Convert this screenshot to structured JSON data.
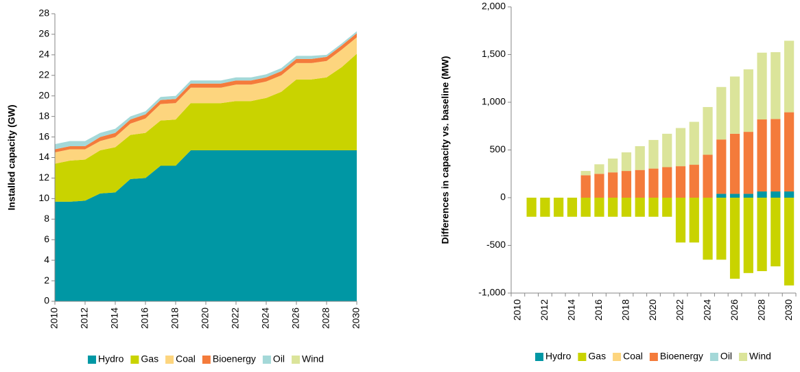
{
  "chart_data": [
    {
      "type": "area",
      "stacked": true,
      "y_label": "Installed capacity (GW)",
      "x": [
        2010,
        2011,
        2012,
        2013,
        2014,
        2015,
        2016,
        2017,
        2018,
        2019,
        2020,
        2021,
        2022,
        2023,
        2024,
        2025,
        2026,
        2027,
        2028,
        2029,
        2030
      ],
      "xlim": [
        2010,
        2030
      ],
      "xticks": [
        2010,
        2012,
        2014,
        2016,
        2018,
        2020,
        2022,
        2024,
        2026,
        2028,
        2030
      ],
      "ylim": [
        0,
        28
      ],
      "yticks": [
        0,
        2,
        4,
        6,
        8,
        10,
        12,
        14,
        16,
        18,
        20,
        22,
        24,
        26,
        28
      ],
      "grid": false,
      "series": [
        {
          "name": "Hydro",
          "color": "#0097a4",
          "values": [
            9.7,
            9.7,
            9.8,
            10.5,
            10.6,
            11.9,
            12.0,
            13.2,
            13.2,
            14.7,
            14.7,
            14.7,
            14.7,
            14.7,
            14.7,
            14.7,
            14.7,
            14.7,
            14.7,
            14.7,
            14.7
          ]
        },
        {
          "name": "Gas",
          "color": "#c9d300",
          "values": [
            3.7,
            4.0,
            4.0,
            4.2,
            4.4,
            4.3,
            4.4,
            4.4,
            4.5,
            4.6,
            4.6,
            4.6,
            4.8,
            4.8,
            5.1,
            5.7,
            6.9,
            6.9,
            7.1,
            8.1,
            9.4
          ]
        },
        {
          "name": "Coal",
          "color": "#fdd57e",
          "values": [
            1.1,
            1.1,
            1.0,
            0.9,
            1.0,
            1.1,
            1.4,
            1.6,
            1.6,
            1.5,
            1.5,
            1.5,
            1.6,
            1.6,
            1.6,
            1.6,
            1.6,
            1.6,
            1.6,
            1.7,
            1.6
          ]
        },
        {
          "name": "Bioenergy",
          "color": "#f47b3b",
          "values": [
            0.3,
            0.3,
            0.3,
            0.4,
            0.4,
            0.4,
            0.4,
            0.4,
            0.4,
            0.4,
            0.4,
            0.4,
            0.4,
            0.4,
            0.4,
            0.4,
            0.4,
            0.4,
            0.4,
            0.4,
            0.4
          ]
        },
        {
          "name": "Oil",
          "color": "#a4d8d8",
          "values": [
            0.5,
            0.5,
            0.5,
            0.4,
            0.4,
            0.3,
            0.3,
            0.3,
            0.3,
            0.3,
            0.3,
            0.3,
            0.3,
            0.3,
            0.3,
            0.3,
            0.3,
            0.3,
            0.2,
            0.2,
            0.2
          ]
        },
        {
          "name": "Wind",
          "color": "#dbe49a",
          "values": [
            0,
            0,
            0,
            0,
            0,
            0,
            0,
            0,
            0,
            0,
            0,
            0,
            0,
            0,
            0,
            0,
            0,
            0,
            0,
            0,
            0
          ]
        }
      ]
    },
    {
      "type": "bar",
      "stacked": true,
      "y_label": "Differences in capacity vs. baseline (MW)",
      "categories": [
        "2010",
        null,
        "2012",
        null,
        "2014",
        null,
        "2016",
        null,
        "2018",
        null,
        "2020",
        null,
        "2022",
        null,
        "2024",
        null,
        "2026",
        null,
        "2028",
        null,
        "2030"
      ],
      "ylim": [
        -1000,
        2000
      ],
      "yticks": [
        {
          "value": -1000,
          "label": "-1,000"
        },
        -500,
        0,
        500,
        {
          "value": 1000,
          "label": "1,000"
        },
        {
          "value": 1500,
          "label": "1,500"
        },
        {
          "value": 2000,
          "label": "2,000"
        }
      ],
      "grid": false,
      "series": [
        {
          "name": "Hydro",
          "color": "#0097a4",
          "values": [
            0,
            0,
            0,
            0,
            0,
            0,
            0,
            0,
            0,
            0,
            0,
            0,
            0,
            0,
            0,
            40,
            40,
            40,
            65,
            65,
            65
          ]
        },
        {
          "name": "Gas",
          "color": "#c9d300",
          "values": [
            0,
            -200,
            -200,
            -200,
            -200,
            -200,
            -200,
            -200,
            -200,
            -200,
            -200,
            -200,
            -470,
            -470,
            -650,
            -650,
            -850,
            -790,
            -770,
            -720,
            -920
          ]
        },
        {
          "name": "Coal",
          "color": "#fdd57e",
          "values": [
            0,
            0,
            0,
            0,
            0,
            0,
            0,
            0,
            0,
            0,
            0,
            0,
            0,
            0,
            0,
            0,
            0,
            0,
            0,
            0,
            0
          ]
        },
        {
          "name": "Bioenergy",
          "color": "#f47b3b",
          "values": [
            0,
            0,
            0,
            0,
            0,
            235,
            250,
            265,
            280,
            290,
            305,
            320,
            330,
            345,
            450,
            570,
            630,
            650,
            755,
            760,
            830
          ]
        },
        {
          "name": "Oil",
          "color": "#a4d8d8",
          "values": [
            0,
            0,
            0,
            0,
            0,
            0,
            0,
            0,
            0,
            0,
            0,
            0,
            0,
            0,
            0,
            0,
            0,
            0,
            0,
            0,
            0
          ]
        },
        {
          "name": "Wind",
          "color": "#dbe49a",
          "values": [
            0,
            0,
            0,
            0,
            0,
            45,
            100,
            145,
            195,
            250,
            300,
            350,
            400,
            450,
            500,
            550,
            600,
            655,
            700,
            700,
            750
          ]
        }
      ]
    }
  ]
}
